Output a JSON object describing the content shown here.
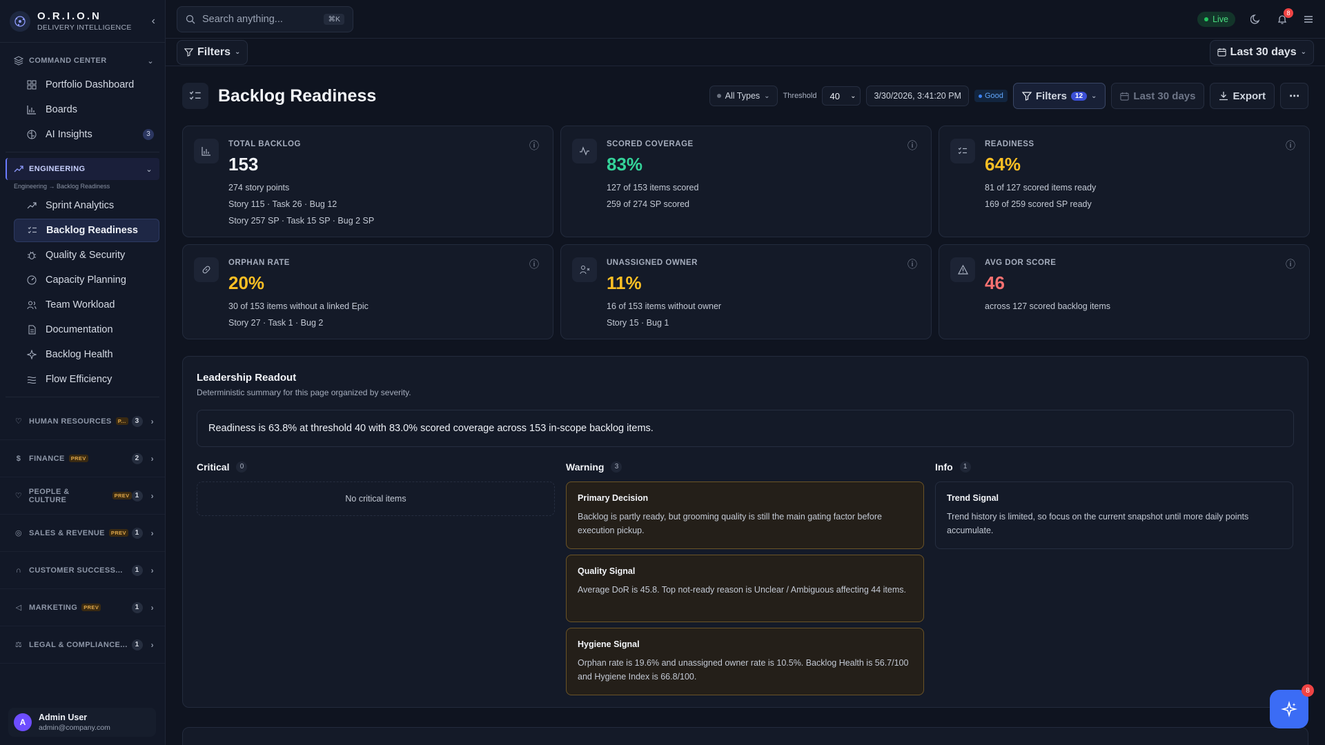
{
  "brand": {
    "name": "O.R.I.O.N",
    "subtitle": "DELIVERY INTELLIGENCE"
  },
  "sidebar": {
    "command_center": {
      "label": "COMMAND CENTER",
      "items": [
        {
          "label": "Portfolio Dashboard",
          "icon": "grid-icon"
        },
        {
          "label": "Boards",
          "icon": "bar-chart-icon"
        },
        {
          "label": "AI Insights",
          "icon": "brain-icon",
          "count": "3"
        }
      ]
    },
    "engineering": {
      "label": "ENGINEERING",
      "breadcrumb": "Engineering → Backlog Readiness",
      "items": [
        {
          "label": "Sprint Analytics",
          "icon": "trend-icon"
        },
        {
          "label": "Backlog Readiness",
          "icon": "list-check-icon",
          "active": true
        },
        {
          "label": "Quality & Security",
          "icon": "bug-icon"
        },
        {
          "label": "Capacity Planning",
          "icon": "gauge-icon"
        },
        {
          "label": "Team Workload",
          "icon": "users-icon"
        },
        {
          "label": "Documentation",
          "icon": "doc-icon"
        },
        {
          "label": "Backlog Health",
          "icon": "sparkle-icon"
        },
        {
          "label": "Flow Efficiency",
          "icon": "flow-icon"
        }
      ]
    },
    "sections": [
      {
        "label": "HUMAN RESOURCES",
        "badge": "P...",
        "count": "3",
        "icon": "heart-icon"
      },
      {
        "label": "FINANCE",
        "badge": "PREV",
        "count": "2",
        "icon": "dollar-icon"
      },
      {
        "label": "PEOPLE & CULTURE",
        "badge": "PREV",
        "count": "1",
        "icon": "heart-icon"
      },
      {
        "label": "SALES & REVENUE",
        "badge": "PREV",
        "count": "1",
        "icon": "target-icon"
      },
      {
        "label": "CUSTOMER SUCCESS...",
        "badge": "",
        "count": "1",
        "icon": "headset-icon"
      },
      {
        "label": "MARKETING",
        "badge": "PREV",
        "count": "1",
        "icon": "megaphone-icon"
      },
      {
        "label": "LEGAL & COMPLIANCE...",
        "badge": "",
        "count": "1",
        "icon": "scale-icon"
      }
    ],
    "user": {
      "initial": "A",
      "name": "Admin User",
      "email": "admin@company.com"
    }
  },
  "topbar": {
    "search_placeholder": "Search anything...",
    "shortcut": "⌘K",
    "live": "Live",
    "notif_count": "8"
  },
  "filterbar": {
    "filters": "Filters",
    "range": "Last 30 days"
  },
  "page": {
    "title": "Backlog Readiness",
    "controls": {
      "types": "All Types",
      "threshold_label": "Threshold",
      "threshold_value": "40",
      "timestamp": "3/30/2026, 3:41:20 PM",
      "status": "Good",
      "filters": "Filters",
      "filters_count": "12",
      "range": "Last 30 days",
      "export": "Export"
    }
  },
  "cards": [
    {
      "label": "TOTAL BACKLOG",
      "value": "153",
      "color": "#f3f5f9",
      "icon": "bar-chart-icon",
      "lines": [
        "274 story points",
        "Story 115 · Task 26 · Bug 12",
        "Story 257 SP · Task 15 SP · Bug 2 SP"
      ]
    },
    {
      "label": "SCORED COVERAGE",
      "value": "83%",
      "color": "#34d399",
      "icon": "activity-icon",
      "lines": [
        "127 of 153 items scored",
        "259 of 274 SP scored"
      ]
    },
    {
      "label": "READINESS",
      "value": "64%",
      "color": "#fbbf24",
      "icon": "list-check-icon",
      "lines": [
        "81 of 127 scored items ready",
        "169 of 259 scored SP ready"
      ]
    },
    {
      "label": "ORPHAN RATE",
      "value": "20%",
      "color": "#fbbf24",
      "icon": "link-icon",
      "lines": [
        "30 of 153 items without a linked Epic",
        "Story 27 · Task 1 · Bug 2"
      ]
    },
    {
      "label": "UNASSIGNED OWNER",
      "value": "11%",
      "color": "#fbbf24",
      "icon": "user-x-icon",
      "lines": [
        "16 of 153 items without owner",
        "Story 15 · Bug 1"
      ]
    },
    {
      "label": "AVG DOR SCORE",
      "value": "46",
      "color": "#f87171",
      "icon": "alert-triangle-icon",
      "lines": [
        "across 127 scored backlog items"
      ]
    }
  ],
  "readout": {
    "title": "Leadership Readout",
    "subtitle": "Deterministic summary for this page organized by severity.",
    "summary": "Readiness is 63.8% at threshold 40 with 83.0% scored coverage across 153 in-scope backlog items.",
    "critical": {
      "label": "Critical",
      "count": "0",
      "empty": "No critical items"
    },
    "warning": {
      "label": "Warning",
      "count": "3",
      "items": [
        {
          "title": "Primary Decision",
          "body": "Backlog is partly ready, but grooming quality is still the main gating factor before execution pickup."
        },
        {
          "title": "Quality Signal",
          "body": "Average DoR is 45.8. Top not-ready reason is Unclear / Ambiguous affecting 44 items."
        },
        {
          "title": "Hygiene Signal",
          "body": "Orphan rate is 19.6% and unassigned owner rate is 10.5%. Backlog Health is 56.7/100 and Hygiene Index is 66.8/100."
        }
      ]
    },
    "info": {
      "label": "Info",
      "count": "1",
      "items": [
        {
          "title": "Trend Signal",
          "body": "Trend history is limited, so focus on the current snapshot until more daily points accumulate."
        }
      ]
    }
  },
  "fab": {
    "count": "8"
  }
}
